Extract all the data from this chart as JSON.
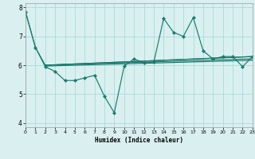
{
  "xlabel": "Humidex (Indice chaleur)",
  "bg_color": "#daf0f0",
  "line_color": "#1a7a6e",
  "grid_color": "#aadada",
  "line1_x": [
    0,
    1,
    2,
    3,
    4,
    5,
    6,
    7,
    8,
    9,
    10,
    11,
    12,
    13,
    14,
    15,
    16,
    17,
    18,
    19,
    20,
    21,
    22,
    23
  ],
  "line1_y": [
    7.85,
    6.62,
    5.95,
    5.78,
    5.47,
    5.47,
    5.56,
    5.65,
    4.92,
    4.35,
    5.97,
    6.22,
    6.08,
    6.1,
    7.62,
    7.14,
    7.0,
    7.65,
    6.5,
    6.22,
    6.3,
    6.3,
    5.95,
    6.3
  ],
  "line2_x": [
    0,
    1,
    2,
    23
  ],
  "line2_y": [
    7.85,
    6.62,
    6.0,
    6.3
  ],
  "line3_x": [
    2,
    23
  ],
  "line3_y": [
    6.0,
    6.3
  ],
  "line4_x": [
    2,
    23
  ],
  "line4_y": [
    6.0,
    6.22
  ],
  "line5_x": [
    2,
    23
  ],
  "line5_y": [
    5.97,
    6.17
  ],
  "ylim": [
    3.85,
    8.15
  ],
  "xlim": [
    0,
    23
  ],
  "yticks": [
    4,
    5,
    6,
    7,
    8
  ],
  "xticks": [
    0,
    1,
    2,
    3,
    4,
    5,
    6,
    7,
    8,
    9,
    10,
    11,
    12,
    13,
    14,
    15,
    16,
    17,
    18,
    19,
    20,
    21,
    22,
    23
  ]
}
